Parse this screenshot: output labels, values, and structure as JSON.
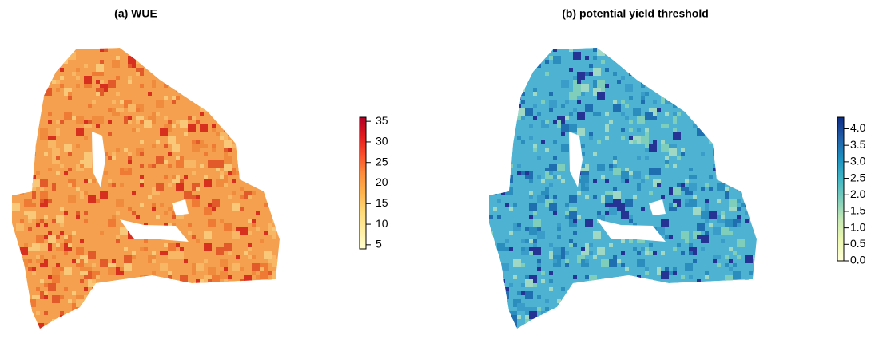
{
  "panels": [
    {
      "title": "(a) WUE",
      "base_color": "#f5a04e",
      "cell_colors": [
        "#f08a3c",
        "#ee7a34",
        "#e35a2a",
        "#d7301f",
        "#f7b765",
        "#f9c979"
      ],
      "legend": {
        "lim": [
          4,
          36
        ],
        "ticks": [
          5,
          10,
          15,
          20,
          25,
          30,
          35
        ],
        "colors": [
          "#ffffcc",
          "#ffeda0",
          "#fed976",
          "#feb24c",
          "#fd8d3c",
          "#fc4e2a",
          "#e31a1c",
          "#b10026"
        ]
      }
    },
    {
      "title": "(b) potential yield threshold",
      "base_color": "#4eb3d3",
      "cell_colors": [
        "#3a9cc8",
        "#2b8cbe",
        "#1f6fb0",
        "#253494",
        "#7fcdbb",
        "#9fd8c4"
      ],
      "legend": {
        "lim": [
          0,
          4.35
        ],
        "ticks": [
          {
            "value": 0,
            "label": "0.0"
          },
          {
            "value": 0.5,
            "label": "0.5"
          },
          {
            "value": 1,
            "label": "1.0"
          },
          {
            "value": 1.5,
            "label": "1.5"
          },
          {
            "value": 2,
            "label": "2.0"
          },
          {
            "value": 2.5,
            "label": "2.5"
          },
          {
            "value": 3,
            "label": "3.0"
          },
          {
            "value": 3.5,
            "label": "3.5"
          },
          {
            "value": 4,
            "label": "4.0"
          }
        ],
        "colors": [
          "#ffffd9",
          "#edf8b1",
          "#c7e9b4",
          "#7fcdbb",
          "#41b6c4",
          "#1d91c0",
          "#225ea8",
          "#0c2c84"
        ]
      }
    }
  ]
}
